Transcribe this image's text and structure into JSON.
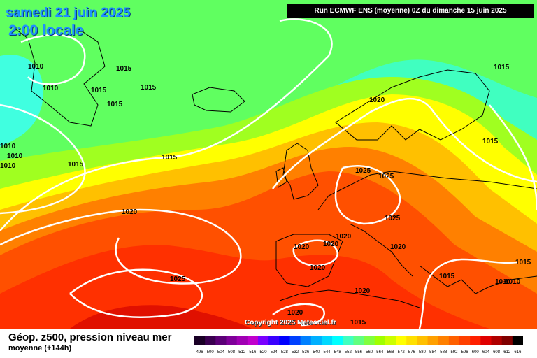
{
  "header": {
    "date": "samedi 21 juin 2025",
    "local_time": "2:00 locale",
    "run_info": "Run ECMWF ENS (moyenne) 0Z du dimanche 15 juin 2025"
  },
  "footer": {
    "title": "Géop. z500, pression niveau mer",
    "subtitle": "moyenne   (+144h)",
    "copyright": "Copyright 2025 Meteociel.fr"
  },
  "isobar_labels": [
    "1010",
    "1015",
    "1010",
    "1015",
    "1015",
    "1015",
    "1015",
    "1010",
    "1010",
    "1015",
    "1020",
    "1025",
    "1025",
    "1020",
    "1020",
    "1020",
    "1020",
    "1025",
    "1020",
    "1020",
    "1020",
    "1015",
    "1025",
    "1015",
    "1015",
    "1015",
    "1010",
    "1010",
    "1020",
    "1015",
    "1010"
  ],
  "legend": {
    "values": [
      "496",
      "500",
      "504",
      "508",
      "512",
      "516",
      "520",
      "524",
      "528",
      "532",
      "536",
      "540",
      "544",
      "548",
      "552",
      "556",
      "560",
      "564",
      "568",
      "572",
      "576",
      "580",
      "584",
      "588",
      "592",
      "596",
      "600",
      "604",
      "608",
      "612",
      "616"
    ],
    "colors": [
      "#1a0026",
      "#3b0050",
      "#5c0077",
      "#7f0099",
      "#a000b3",
      "#c000cc",
      "#7a00ff",
      "#3a00ff",
      "#0000ff",
      "#0040ff",
      "#0080ff",
      "#00b0ff",
      "#00d8ff",
      "#00ffff",
      "#40ffc0",
      "#60ff80",
      "#80ff40",
      "#a0ff00",
      "#ccff00",
      "#ffff00",
      "#ffe000",
      "#ffc000",
      "#ffa000",
      "#ff8000",
      "#ff6000",
      "#ff4000",
      "#ff2000",
      "#e00000",
      "#b00000",
      "#800000",
      "#000000"
    ]
  },
  "colors": {
    "title_blue": "#1e90ff",
    "isobar": "#ffffff",
    "coast": "#000000"
  }
}
